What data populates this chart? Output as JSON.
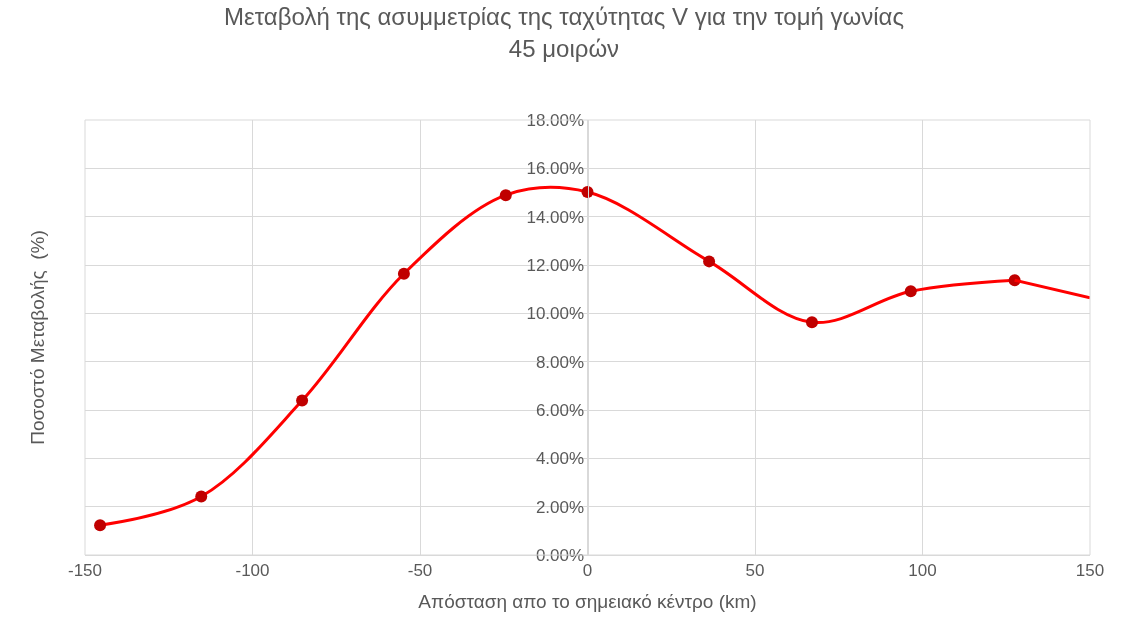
{
  "chart_data": {
    "type": "line",
    "title": "Μεταβολή της ασυμμετρίας της ταχύτητας V για την τομή γωνίας\n45 μοιρών",
    "xlabel": "Απόσταση απο το σημειακό κέντρο (km)",
    "ylabel": "Ποσοστό Μεταβολής  (%)",
    "x": [
      -145.5,
      -115.3,
      -85.2,
      -54.8,
      -24.4,
      0,
      36.3,
      67.0,
      96.5,
      127.5
    ],
    "series": [
      {
        "color": "#ff0000",
        "colors": [
          "#c00000",
          "#c00000",
          "#c00000",
          "#c00000",
          "#c00000",
          "#c00000",
          "#c00000",
          "#c00000",
          "#c00000",
          "#c00000"
        ],
        "marker": "circle",
        "values": [
          1.23,
          2.42,
          6.39,
          11.64,
          14.89,
          15.02,
          12.15,
          9.63,
          10.91,
          11.37
        ]
      },
      {
        "color": "#ff0000",
        "marker": "none",
        "x": [
          127.5,
          150
        ],
        "values": [
          11.37,
          10.64
        ]
      }
    ],
    "xlim": [
      -150,
      150
    ],
    "xticks": [
      -150,
      -100,
      -50,
      0,
      50,
      100,
      150
    ],
    "ylim": [
      0,
      18
    ],
    "yticks": [
      {
        "value": 0,
        "label": "0.00%"
      },
      {
        "value": 2,
        "label": "2.00%"
      },
      {
        "value": 4,
        "label": "4.00%"
      },
      {
        "value": 6,
        "label": "6.00%"
      },
      {
        "value": 8,
        "label": "8.00%"
      },
      {
        "value": 10,
        "label": "10.00%"
      },
      {
        "value": 12,
        "label": "12.00%"
      },
      {
        "value": 14,
        "label": "14.00%"
      },
      {
        "value": 16,
        "label": "16.00%"
      },
      {
        "value": 18,
        "label": "18.00%"
      }
    ],
    "grid": true,
    "line_style": "solid"
  }
}
